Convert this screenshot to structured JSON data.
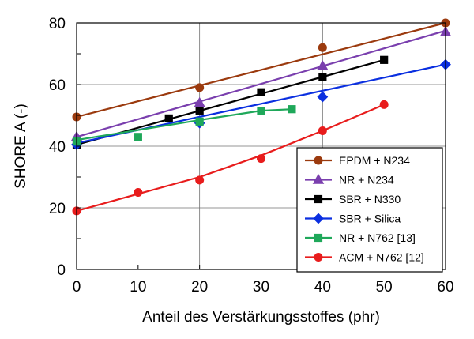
{
  "chart_data": {
    "type": "scatter",
    "title": "",
    "xlabel": "Anteil des Verstärkungsstoffes (phr)",
    "ylabel": "SHORE A (-)",
    "xlim": [
      0,
      60
    ],
    "ylim": [
      0,
      80
    ],
    "xticks": [
      0,
      10,
      20,
      30,
      40,
      50,
      60
    ],
    "yticks": [
      0,
      20,
      40,
      60,
      80
    ],
    "grid": true,
    "legend_position": "bottom-right",
    "series": [
      {
        "name": "EPDM + N234",
        "color": "#9b3a0e",
        "marker": "circle",
        "x": [
          0,
          20,
          40,
          60
        ],
        "y": [
          49.5,
          59,
          72,
          80
        ],
        "fit": [
          [
            0,
            49.5
          ],
          [
            60,
            80
          ]
        ]
      },
      {
        "name": "NR + N234",
        "color": "#7a3fae",
        "marker": "triangle",
        "x": [
          0,
          20,
          40,
          60
        ],
        "y": [
          43,
          54,
          66,
          77
        ],
        "fit": [
          [
            0,
            43
          ],
          [
            60,
            77.5
          ]
        ]
      },
      {
        "name": "SBR + N330",
        "color": "#000000",
        "marker": "square",
        "x": [
          0,
          15,
          20,
          30,
          40,
          50
        ],
        "y": [
          40.5,
          49,
          51.5,
          57.5,
          62.5,
          68
        ],
        "fit": [
          [
            0,
            40.5
          ],
          [
            50,
            68
          ]
        ]
      },
      {
        "name": "SBR + Silica",
        "color": "#0a2fe0",
        "marker": "diamond",
        "x": [
          0,
          20,
          40,
          60
        ],
        "y": [
          40.5,
          47.5,
          56,
          66.5
        ],
        "fit": [
          [
            0,
            41
          ],
          [
            60,
            66.5
          ]
        ]
      },
      {
        "name": "NR + N762 [13]",
        "color": "#1fa85a",
        "marker": "square",
        "x": [
          0,
          10,
          20,
          30,
          35
        ],
        "y": [
          41.5,
          43,
          48,
          51.5,
          52
        ],
        "fit": [
          [
            0,
            42
          ],
          [
            20,
            48.5
          ],
          [
            30,
            51.5
          ],
          [
            35,
            52
          ]
        ]
      },
      {
        "name": "ACM + N762 [12]",
        "color": "#e81c1c",
        "marker": "circle",
        "x": [
          0,
          10,
          20,
          30,
          40,
          50
        ],
        "y": [
          19,
          25,
          29,
          36,
          45,
          53.5
        ],
        "fit": [
          [
            0,
            19
          ],
          [
            10,
            24.5
          ],
          [
            20,
            30
          ],
          [
            30,
            37
          ],
          [
            40,
            45
          ],
          [
            50,
            53.5
          ]
        ]
      }
    ]
  }
}
